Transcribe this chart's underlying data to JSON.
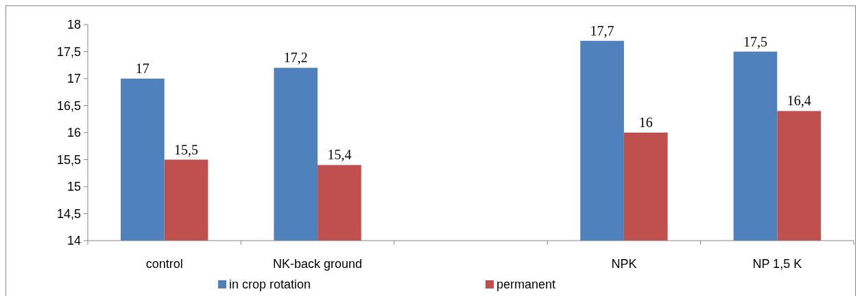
{
  "chart_data": {
    "type": "bar",
    "categories": [
      "control",
      "NK-back ground",
      null,
      "NPK",
      "NP 1,5 K"
    ],
    "series": [
      {
        "name": "in crop rotation",
        "color": "#4f81bd",
        "values": [
          17,
          17.2,
          null,
          17.7,
          17.5
        ],
        "value_labels": [
          "17",
          "17,2",
          null,
          "17,7",
          "17,5"
        ]
      },
      {
        "name": "permanent",
        "color": "#c0504d",
        "values": [
          15.5,
          15.4,
          null,
          16,
          16.4
        ],
        "value_labels": [
          "15,5",
          "15,4",
          null,
          "16",
          "16,4"
        ]
      }
    ],
    "ylim": [
      14,
      18
    ],
    "yticks": [
      14,
      {
        "value": 14.5,
        "label": "14,5"
      },
      15,
      {
        "value": 15.5,
        "label": "15,5"
      },
      16,
      {
        "value": 16.5,
        "label": "16,5"
      },
      17,
      {
        "value": 17.5,
        "label": "17,5"
      },
      18
    ],
    "grid": false,
    "legend": "bottom"
  }
}
